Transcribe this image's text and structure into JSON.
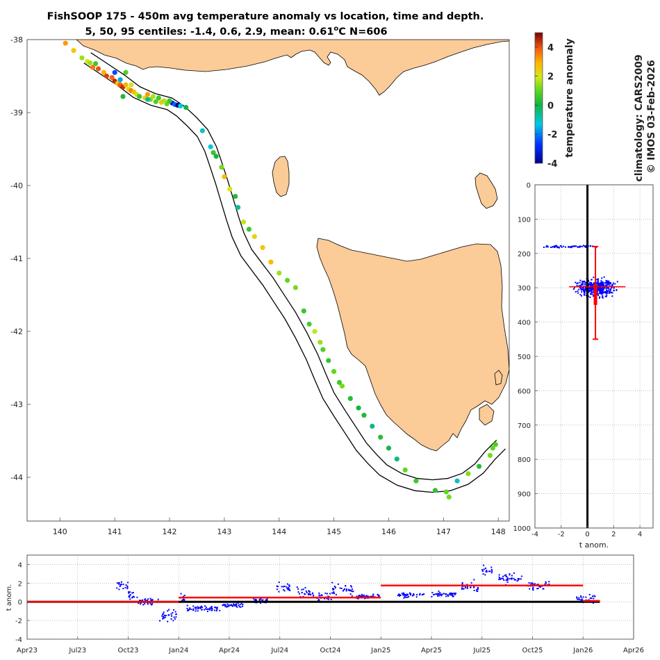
{
  "title": {
    "line1": "FishSOOP 175 - 450m avg temperature anomaly vs location, time and depth.",
    "line2_prefix": "5, 50, 95 centiles: -1.4, 0.6, 2.9, mean: 0.61",
    "line2_deg": "o",
    "line2_suffix": "C N=606"
  },
  "side_text": {
    "climatology": "climatology: CARS2009",
    "credit": "© IMOS 03-Feb-2026"
  },
  "colors": {
    "land": "#fbcb98",
    "profile_dots": "#0000ff",
    "mean_line": "#ff0000",
    "zero_line": "#000000"
  },
  "chart_data": [
    {
      "type": "scatter",
      "name": "map",
      "xlim": [
        139.4,
        148.2
      ],
      "ylim": [
        -44.6,
        -38.0
      ],
      "xticks": [
        140,
        141,
        142,
        143,
        144,
        145,
        146,
        147,
        148
      ],
      "yticks": [
        -38,
        -39,
        -40,
        -41,
        -42,
        -43,
        -44
      ],
      "track_lon": [
        140.5,
        140.8,
        141.1,
        141.4,
        141.7,
        142.0,
        142.2,
        142.4,
        142.6,
        142.75,
        142.85,
        142.95,
        143.05,
        143.15,
        143.25,
        143.4,
        143.6,
        143.8,
        144.0,
        144.2,
        144.4,
        144.6,
        144.75,
        144.9,
        145.1,
        145.3,
        145.5,
        145.7,
        145.9,
        146.2,
        146.5,
        146.8,
        147.1,
        147.4,
        147.65,
        147.85,
        148.05
      ],
      "track_lat": [
        -38.25,
        -38.4,
        -38.55,
        -38.72,
        -38.82,
        -38.88,
        -38.98,
        -39.12,
        -39.28,
        -39.5,
        -39.72,
        -39.95,
        -40.2,
        -40.45,
        -40.68,
        -40.92,
        -41.12,
        -41.32,
        -41.55,
        -41.78,
        -42.05,
        -42.35,
        -42.62,
        -42.88,
        -43.12,
        -43.35,
        -43.58,
        -43.75,
        -43.9,
        -44.03,
        -44.1,
        -44.12,
        -44.1,
        -44.02,
        -43.88,
        -43.7,
        -43.55
      ],
      "points": [
        [
          140.1,
          -38.05,
          3.2
        ],
        [
          140.25,
          -38.15,
          2.5
        ],
        [
          140.4,
          -38.25,
          1.5
        ],
        [
          140.5,
          -38.3,
          2.0
        ],
        [
          140.6,
          -38.38,
          3.6
        ],
        [
          140.7,
          -38.4,
          4.0
        ],
        [
          140.8,
          -38.45,
          3.0
        ],
        [
          140.85,
          -38.5,
          4.2
        ],
        [
          140.95,
          -38.52,
          3.8
        ],
        [
          141.0,
          -38.57,
          4.5
        ],
        [
          141.05,
          -38.6,
          2.6
        ],
        [
          141.1,
          -38.62,
          3.9
        ],
        [
          141.15,
          -38.65,
          4.4
        ],
        [
          141.2,
          -38.62,
          3.0
        ],
        [
          141.25,
          -38.68,
          2.2
        ],
        [
          141.3,
          -38.7,
          3.5
        ],
        [
          141.35,
          -38.72,
          2.8
        ],
        [
          141.4,
          -38.75,
          1.8
        ],
        [
          141.45,
          -38.78,
          0.5
        ],
        [
          141.55,
          -38.8,
          2.4
        ],
        [
          141.65,
          -38.82,
          1.2
        ],
        [
          141.75,
          -38.85,
          0.8
        ],
        [
          141.85,
          -38.86,
          2.6
        ],
        [
          141.95,
          -38.88,
          1.0
        ],
        [
          142.05,
          -38.87,
          -3.2
        ],
        [
          142.1,
          -38.89,
          -2.2
        ],
        [
          142.15,
          -38.9,
          -4.1
        ],
        [
          142.2,
          -38.91,
          -1.2
        ],
        [
          142.3,
          -38.93,
          0.0
        ],
        [
          142.0,
          -38.84,
          0.5
        ],
        [
          141.9,
          -38.84,
          1.6
        ],
        [
          141.0,
          -38.45,
          -2.5
        ],
        [
          141.1,
          -38.55,
          -1.6
        ],
        [
          141.2,
          -38.45,
          0.8
        ],
        [
          140.55,
          -38.32,
          1.5
        ],
        [
          140.65,
          -38.33,
          0.6
        ],
        [
          141.6,
          -38.82,
          -0.6
        ],
        [
          142.6,
          -39.25,
          -1.0
        ],
        [
          142.75,
          -39.47,
          -1.2
        ],
        [
          142.8,
          -39.55,
          0.5
        ],
        [
          142.85,
          -39.6,
          0.0
        ],
        [
          142.95,
          -39.75,
          1.2
        ],
        [
          143.0,
          -39.88,
          2.8
        ],
        [
          143.1,
          -40.05,
          2.0
        ],
        [
          143.2,
          -40.15,
          0.2
        ],
        [
          143.25,
          -40.3,
          -0.6
        ],
        [
          143.35,
          -40.5,
          1.8
        ],
        [
          143.45,
          -40.6,
          0.5
        ],
        [
          143.55,
          -40.7,
          2.4
        ],
        [
          143.7,
          -40.85,
          2.6
        ],
        [
          143.85,
          -41.05,
          2.8
        ],
        [
          144.0,
          -41.2,
          1.5
        ],
        [
          144.15,
          -41.3,
          1.0
        ],
        [
          144.3,
          -41.4,
          1.2
        ],
        [
          144.45,
          -41.72,
          0.5
        ],
        [
          144.55,
          -41.9,
          0.7
        ],
        [
          144.65,
          -42.0,
          1.8
        ],
        [
          144.75,
          -42.15,
          1.5
        ],
        [
          144.8,
          -42.25,
          0.8
        ],
        [
          144.9,
          -42.4,
          0.5
        ],
        [
          145.0,
          -42.55,
          1.0
        ],
        [
          145.1,
          -42.7,
          0.6
        ],
        [
          145.15,
          -42.75,
          1.2
        ],
        [
          145.3,
          -42.92,
          0.3
        ],
        [
          145.45,
          -43.05,
          0.0
        ],
        [
          145.55,
          -43.15,
          0.2
        ],
        [
          145.7,
          -43.3,
          -0.4
        ],
        [
          145.85,
          -43.45,
          0.3
        ],
        [
          146.0,
          -43.6,
          0.0
        ],
        [
          146.15,
          -43.75,
          -0.5
        ],
        [
          146.3,
          -43.9,
          1.0
        ],
        [
          146.5,
          -44.05,
          0.6
        ],
        [
          146.85,
          -44.18,
          0.4
        ],
        [
          147.05,
          -44.2,
          1.0
        ],
        [
          147.1,
          -44.27,
          1.2
        ],
        [
          147.25,
          -44.05,
          -1.0
        ],
        [
          147.45,
          -43.95,
          1.3
        ],
        [
          147.65,
          -43.85,
          0.3
        ],
        [
          147.85,
          -43.7,
          1.2
        ],
        [
          147.9,
          -43.6,
          1.0
        ],
        [
          147.95,
          -43.55,
          0.8
        ],
        [
          141.6,
          -38.75,
          3.2
        ],
        [
          141.7,
          -38.78,
          1.6
        ],
        [
          141.8,
          -38.8,
          0.6
        ],
        [
          141.15,
          -38.78,
          0.2
        ],
        [
          141.3,
          -38.62,
          2.0
        ]
      ]
    },
    {
      "type": "scatter",
      "name": "depth_profile",
      "xlabel": "t anom.",
      "xlim": [
        -4,
        5
      ],
      "ylim": [
        0,
        1000
      ],
      "xticks": [
        -4,
        -2,
        0,
        2,
        4
      ],
      "yticks": [
        0,
        100,
        200,
        300,
        400,
        500,
        600,
        700,
        800,
        900,
        1000
      ],
      "mean_x": 0.61,
      "depth_bar": [
        180,
        450
      ],
      "depth_box": [
        290,
        350
      ],
      "centile_range": [
        -1.4,
        2.9
      ]
    },
    {
      "type": "line",
      "name": "time_series",
      "ylabel": "t anom.",
      "ylim": [
        -4,
        5
      ],
      "yticks": [
        -4,
        -2,
        0,
        2,
        4
      ],
      "xtick_labels": [
        "Apr23",
        "Jul23",
        "Oct23",
        "Jan24",
        "Apr24",
        "Jul24",
        "Oct24",
        "Jan25",
        "Apr25",
        "Jul25",
        "Oct25",
        "Jan26",
        "Apr26"
      ],
      "xlim_months": [
        0,
        36
      ],
      "mean_segments": [
        {
          "start": 0,
          "end": 9,
          "value": 0.0
        },
        {
          "start": 9,
          "end": 21,
          "value": 0.45
        },
        {
          "start": 21,
          "end": 33,
          "value": 1.75
        },
        {
          "start": 33,
          "end": 34,
          "value": 0.1
        }
      ],
      "clusters": [
        {
          "start": 5.3,
          "end": 6.0,
          "center": 1.8,
          "spread": 0.9
        },
        {
          "start": 6.0,
          "end": 6.6,
          "center": 0.7,
          "spread": 0.9
        },
        {
          "start": 6.6,
          "end": 7.8,
          "center": 0.0,
          "spread": 0.6
        },
        {
          "start": 7.8,
          "end": 8.9,
          "center": -1.4,
          "spread": 1.1
        },
        {
          "start": 9.0,
          "end": 9.4,
          "center": 0.3,
          "spread": 0.9
        },
        {
          "start": 9.5,
          "end": 11.5,
          "center": -0.7,
          "spread": 0.6
        },
        {
          "start": 11.6,
          "end": 12.8,
          "center": -0.4,
          "spread": 0.5
        },
        {
          "start": 13.3,
          "end": 14.3,
          "center": 0.2,
          "spread": 0.6
        },
        {
          "start": 14.8,
          "end": 15.6,
          "center": 1.5,
          "spread": 1.1
        },
        {
          "start": 16.0,
          "end": 17.0,
          "center": 1.0,
          "spread": 1.3
        },
        {
          "start": 17.2,
          "end": 18.1,
          "center": 0.5,
          "spread": 0.9
        },
        {
          "start": 18.1,
          "end": 19.4,
          "center": 1.3,
          "spread": 1.2
        },
        {
          "start": 19.5,
          "end": 20.9,
          "center": 0.6,
          "spread": 0.5
        },
        {
          "start": 22.0,
          "end": 23.6,
          "center": 0.7,
          "spread": 0.4
        },
        {
          "start": 24.0,
          "end": 25.5,
          "center": 0.8,
          "spread": 0.4
        },
        {
          "start": 25.8,
          "end": 26.8,
          "center": 1.6,
          "spread": 1.0
        },
        {
          "start": 27.0,
          "end": 27.6,
          "center": 3.2,
          "spread": 1.0
        },
        {
          "start": 28.0,
          "end": 29.4,
          "center": 2.5,
          "spread": 1.0
        },
        {
          "start": 29.7,
          "end": 31.0,
          "center": 1.8,
          "spread": 0.8
        },
        {
          "start": 32.6,
          "end": 33.8,
          "center": 0.3,
          "spread": 0.7
        }
      ]
    },
    {
      "type": "colorbar",
      "name": "colorbar",
      "label": "temperature anomaly",
      "range": [
        -4,
        5
      ],
      "ticks": [
        -4,
        -2,
        0,
        2,
        4
      ]
    }
  ]
}
